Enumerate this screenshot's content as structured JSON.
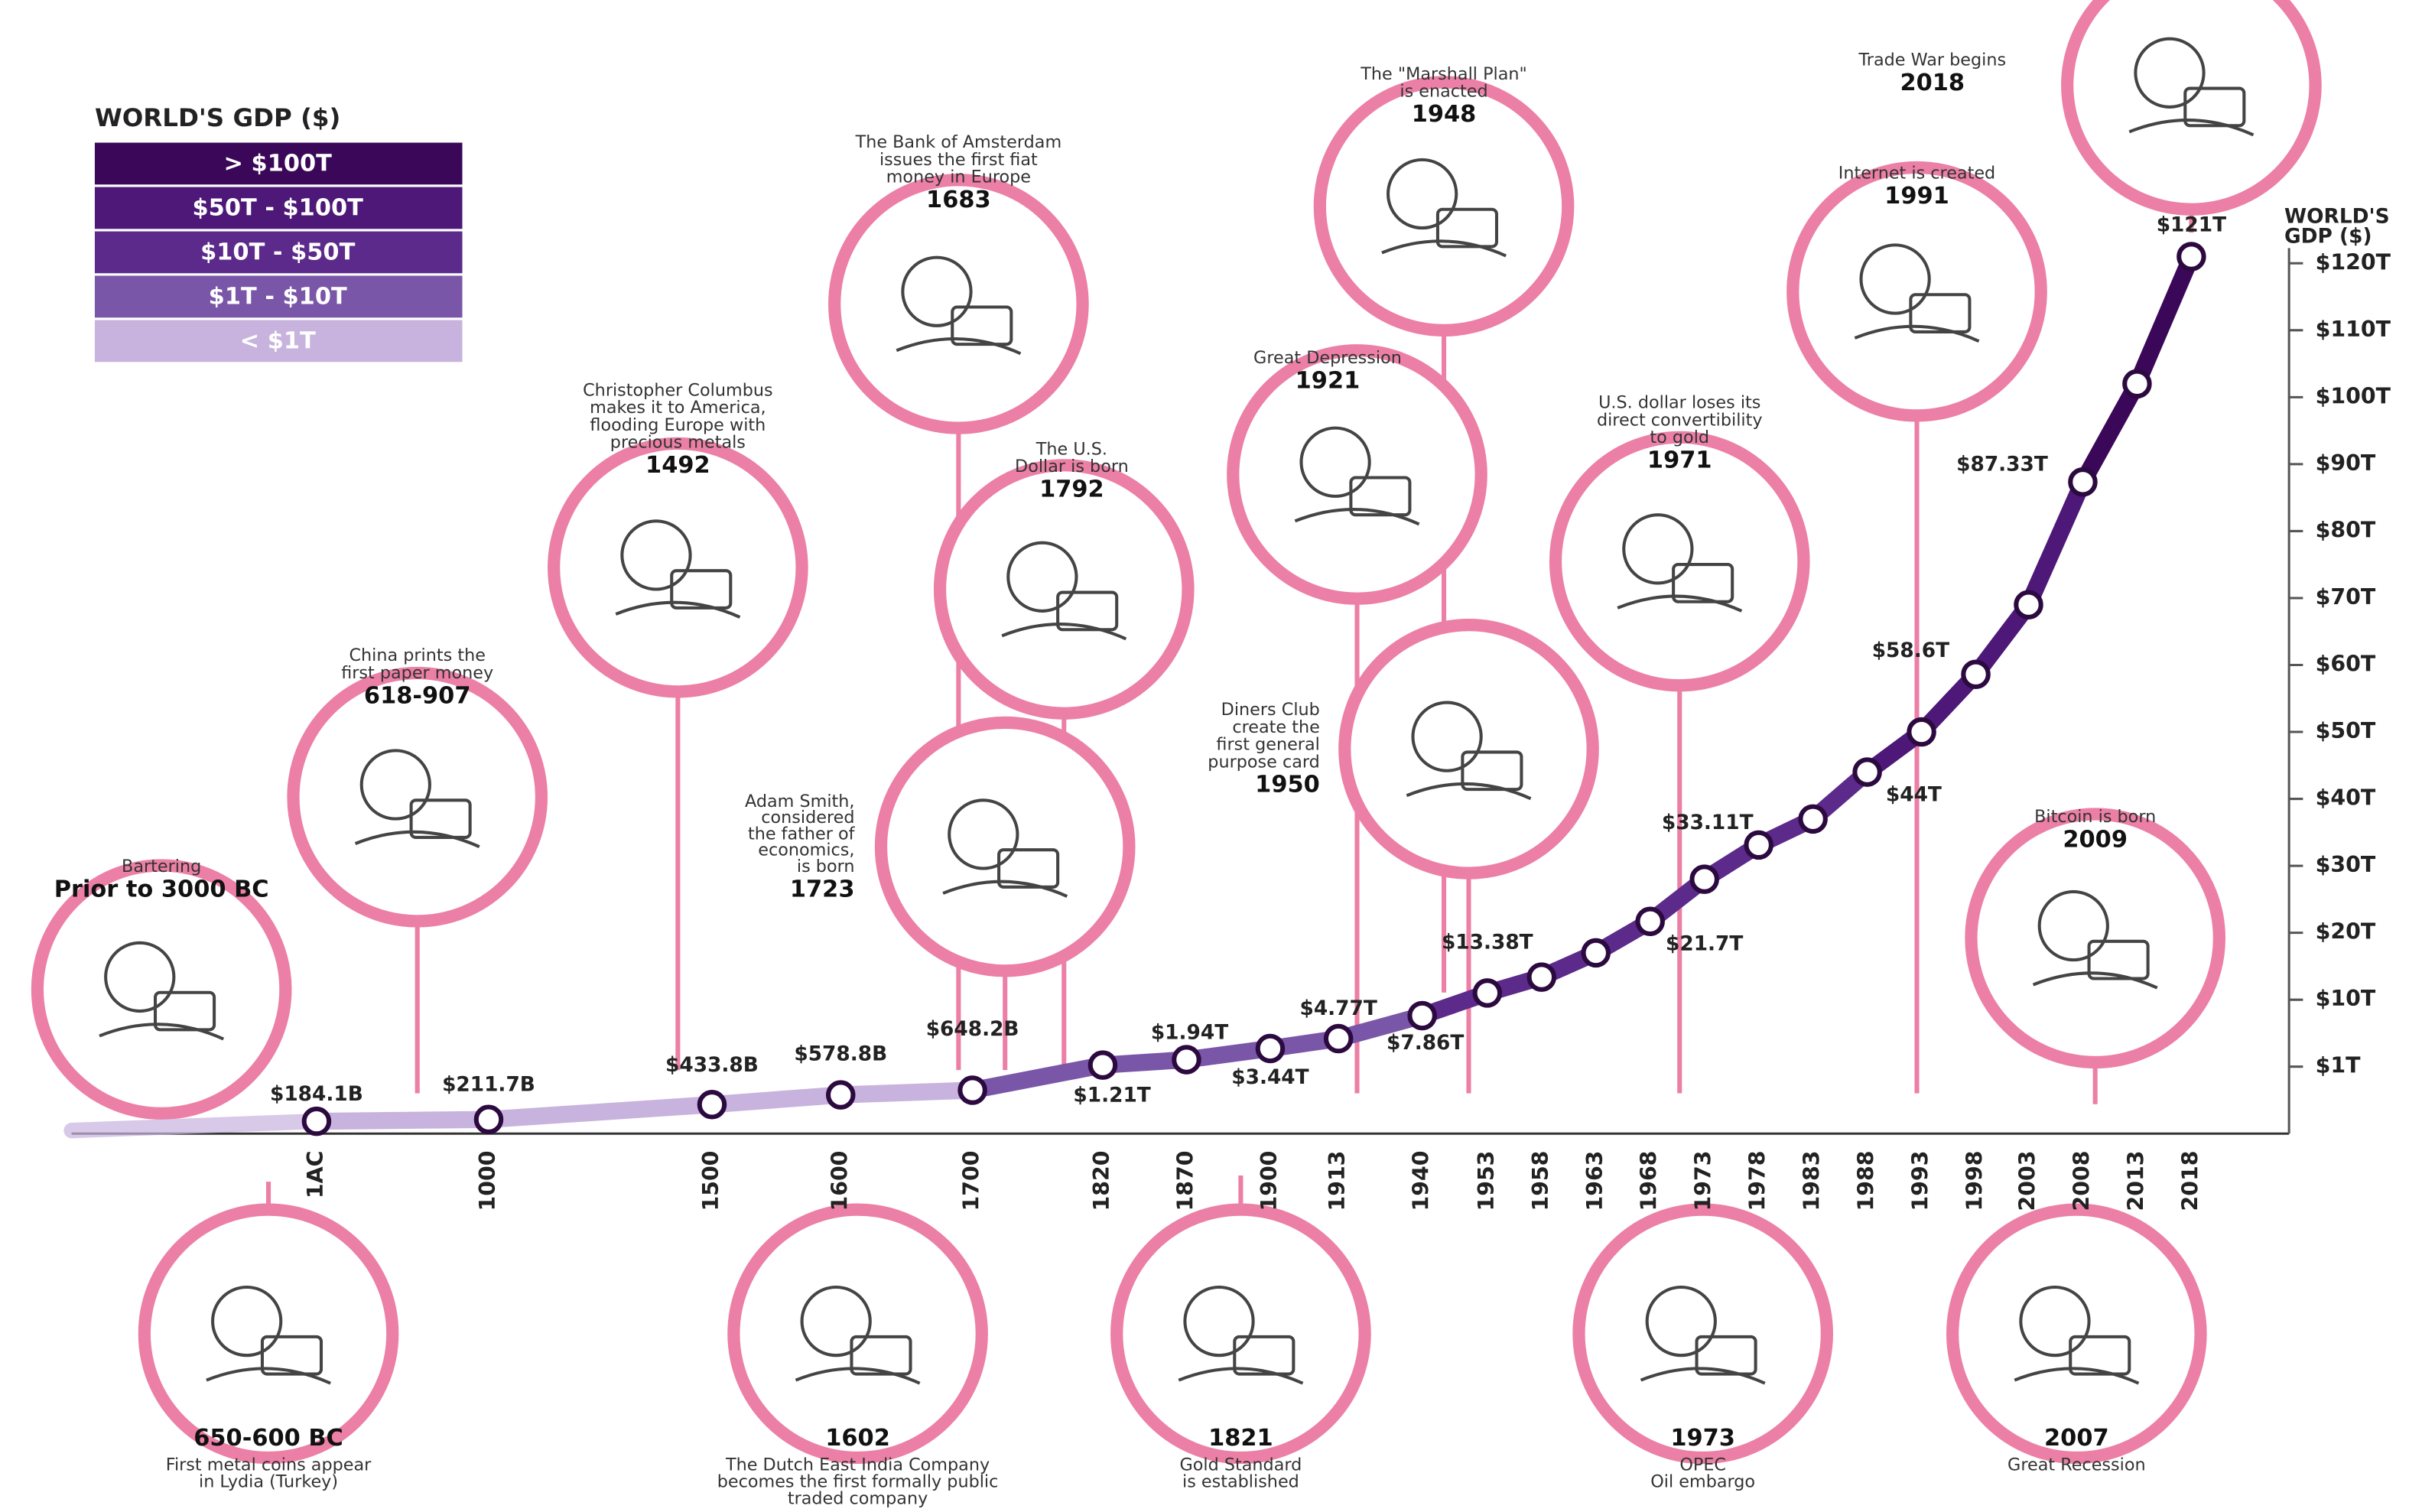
{
  "chart_data": {
    "type": "line",
    "legend": {
      "title": "WORLD'S GDP ($)",
      "items": [
        {
          "label": "> $100T",
          "color": "#3b0758",
          "min": 100
        },
        {
          "label": "$50T - $100T",
          "color": "#4d1878",
          "min": 50,
          "max": 100
        },
        {
          "label": "$10T - $50T",
          "color": "#5c2a8a",
          "min": 10,
          "max": 50
        },
        {
          "label": "$1T - $10T",
          "color": "#7a56a8",
          "min": 1,
          "max": 10
        },
        {
          "label": "< $1T",
          "color": "#c7b3de",
          "max": 1
        }
      ]
    },
    "ylabel": [
      "WORLD'S",
      "GDP ($)"
    ],
    "categories": [
      "1AC",
      "1000",
      "1500",
      "1600",
      "1700",
      "1820",
      "1870",
      "1900",
      "1913",
      "1940",
      "1953",
      "1958",
      "1963",
      "1968",
      "1973",
      "1978",
      "1983",
      "1988",
      "1993",
      "1998",
      "2003",
      "2008",
      "2013",
      "2018"
    ],
    "values": [
      0.1841,
      0.2117,
      0.4338,
      0.5788,
      0.6482,
      1.21,
      1.94,
      3.44,
      4.77,
      7.86,
      11,
      13.38,
      17,
      21.7,
      28,
      33.11,
      37,
      44,
      50,
      58.6,
      69,
      87.33,
      102,
      121
    ],
    "value_labels": [
      "$184.1B",
      "$211.7B",
      "$433.8B",
      "$578.8B",
      "$648.2B",
      "$1.21T",
      "$1.94T",
      "$3.44T",
      "$4.77T",
      "$7.86T",
      null,
      "$13.38T",
      null,
      "$21.7T",
      null,
      "$33.11T",
      null,
      "$44T",
      null,
      "$58.6T",
      null,
      "$87.33T",
      null,
      "$121T"
    ],
    "ylim": [
      0,
      122
    ],
    "yticks": [
      {
        "value": 1,
        "label": "$1T"
      },
      {
        "value": 10,
        "label": "$10T"
      },
      {
        "value": 20,
        "label": "$20T"
      },
      {
        "value": 30,
        "label": "$30T"
      },
      {
        "value": 40,
        "label": "$40T"
      },
      {
        "value": 50,
        "label": "$50T"
      },
      {
        "value": 60,
        "label": "$60T"
      },
      {
        "value": 70,
        "label": "$70T"
      },
      {
        "value": 80,
        "label": "$80T"
      },
      {
        "value": 90,
        "label": "$90T"
      },
      {
        "value": 100,
        "label": "$100T"
      },
      {
        "value": 110,
        "label": "$110T"
      },
      {
        "value": 120,
        "label": "$120T"
      }
    ],
    "events": [
      {
        "lines": [
          "Bartering"
        ],
        "date": "Prior to 3000 BC"
      },
      {
        "lines": [
          "China prints the",
          "first paper money"
        ],
        "date": "618-907"
      },
      {
        "lines": [
          "Christopher Columbus",
          "makes it to America,",
          "flooding Europe with",
          "precious metals"
        ],
        "date": "1492"
      },
      {
        "lines": [
          "The Bank of Amsterdam",
          "issues the first fiat",
          "money in Europe"
        ],
        "date": "1683"
      },
      {
        "lines": [
          "The U.S.",
          "Dollar is born"
        ],
        "date": "1792"
      },
      {
        "lines": [
          "Adam Smith,",
          "considered",
          "the father of",
          "economics,",
          "is born"
        ],
        "date": "1723"
      },
      {
        "lines": [
          "Great Depression"
        ],
        "date": "1921"
      },
      {
        "lines": [
          "The \"Marshall Plan\"",
          "is enacted"
        ],
        "date": "1948"
      },
      {
        "lines": [
          "Diners Club",
          "create the",
          "first general",
          "purpose card"
        ],
        "date": "1950"
      },
      {
        "lines": [
          "U.S. dollar loses its",
          "direct convertibility",
          "to gold"
        ],
        "date": "1971"
      },
      {
        "lines": [
          "Internet is created"
        ],
        "date": "1991"
      },
      {
        "lines": [
          "Trade War begins"
        ],
        "date": "2018"
      },
      {
        "lines": [
          "Bitcoin is born"
        ],
        "date": "2009"
      },
      {
        "lines": [
          "First metal coins appear",
          "in Lydia (Turkey)"
        ],
        "date": "650-600 BC"
      },
      {
        "lines": [
          "The Dutch East India Company",
          "becomes the first formally public",
          "traded company"
        ],
        "date": "1602"
      },
      {
        "lines": [
          "Gold Standard",
          "is established"
        ],
        "date": "1821"
      },
      {
        "lines": [
          "OPEC",
          "Oil embargo"
        ],
        "date": "1973"
      },
      {
        "lines": [
          "Great Recession"
        ],
        "date": "2007"
      }
    ]
  }
}
